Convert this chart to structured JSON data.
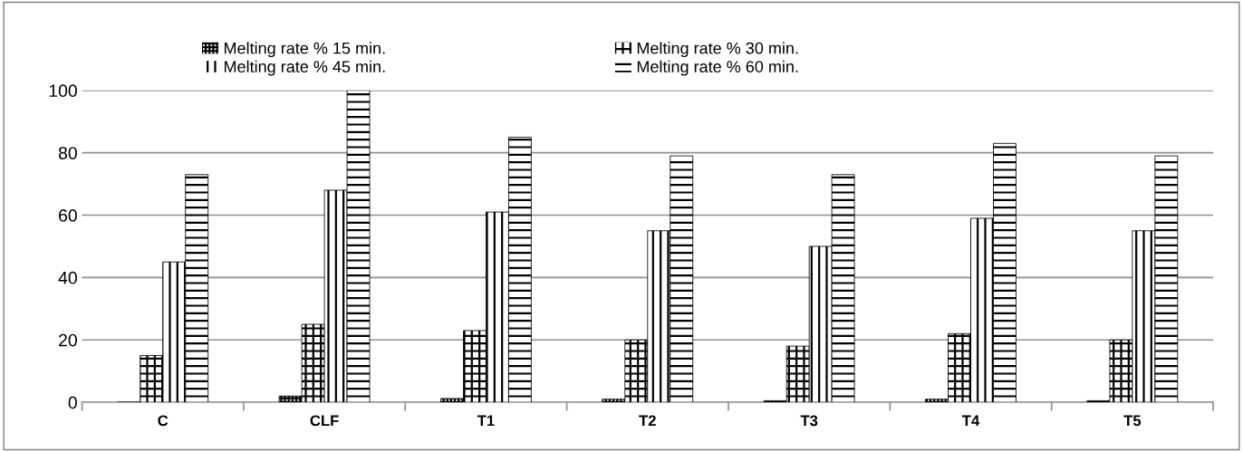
{
  "chart_data": {
    "type": "bar",
    "categories": [
      "C",
      "CLF",
      "T1",
      "T2",
      "T3",
      "T4",
      "T5"
    ],
    "series": [
      {
        "name": "Melting rate % 15 min.",
        "color": "#000000",
        "values": [
          0,
          2,
          1.2,
          1,
          0.5,
          1,
          0.5
        ]
      },
      {
        "name": "Melting rate % 30 min.",
        "color": "#000000",
        "values": [
          15,
          25,
          23,
          20,
          18,
          22,
          20
        ]
      },
      {
        "name": "Melting rate % 45 min.",
        "color": "#000000",
        "values": [
          45,
          68,
          61,
          55,
          50,
          59,
          55
        ]
      },
      {
        "name": "Melting rate % 60 min.",
        "color": "#000000",
        "values": [
          73,
          100,
          85,
          79,
          73,
          83,
          79
        ]
      }
    ],
    "ylim": [
      0,
      100
    ],
    "yticks": [
      0,
      20,
      40,
      60,
      80,
      100
    ],
    "grid": "y",
    "legend": "top"
  }
}
